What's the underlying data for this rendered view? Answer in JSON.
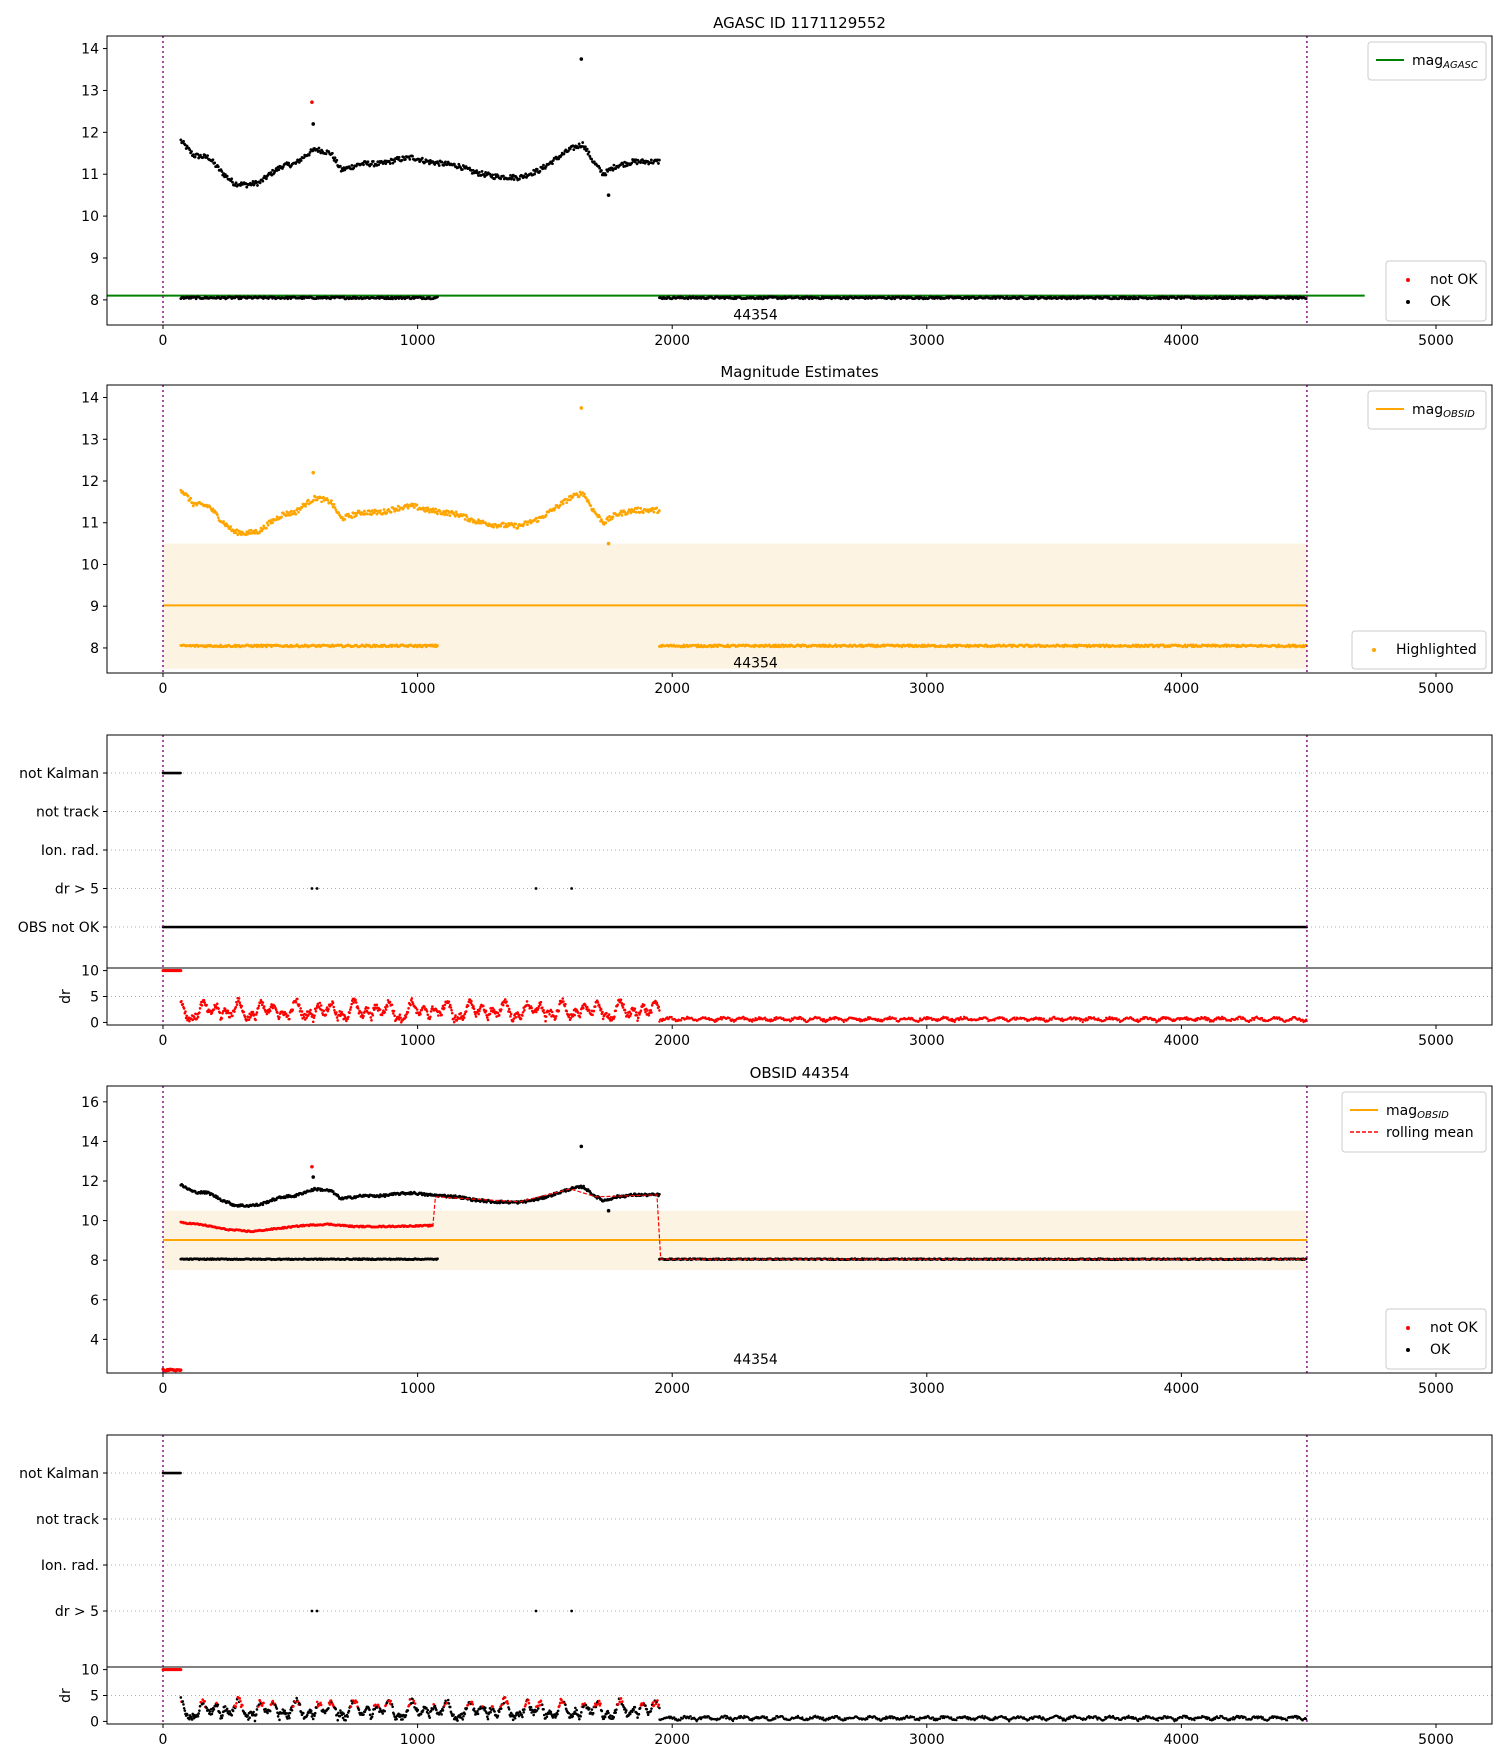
{
  "chart_data": [
    {
      "type": "scatter",
      "title": "AGASC ID 1171129552",
      "xlim": [
        -220,
        5220
      ],
      "ylim": [
        7.4,
        14.3
      ],
      "xticks": [
        0,
        1000,
        2000,
        3000,
        4000,
        5000
      ],
      "yticks": [
        8,
        9,
        10,
        11,
        12,
        13,
        14
      ],
      "vlines": [
        0,
        4493
      ],
      "hlines": [
        {
          "y": 8.1,
          "x": [
            -220,
            4720
          ],
          "color": "#008000"
        }
      ],
      "obsid_label": {
        "text": "44354",
        "x": 2240,
        "y": 7.65
      },
      "segments": {
        "bright_curve": {
          "x_range": [
            70,
            1950
          ],
          "level": 11.2
        },
        "faint_1": {
          "x_range": [
            70,
            1080
          ],
          "level": 8.05
        },
        "faint_2": {
          "x_range": [
            1950,
            4493
          ],
          "level": 8.05
        }
      },
      "outliers": [
        {
          "x": 585,
          "y": 12.72,
          "series": "not OK"
        },
        {
          "x": 590,
          "y": 12.2,
          "series": "OK"
        },
        {
          "x": 1643,
          "y": 13.75,
          "series": "OK"
        },
        {
          "x": 1750,
          "y": 10.5,
          "series": "OK"
        }
      ],
      "series": [
        {
          "name": "not OK",
          "color": "#ff0000"
        },
        {
          "name": "OK",
          "color": "#000000"
        }
      ],
      "legends": [
        {
          "position": "top-right",
          "items": [
            {
              "label": "mag",
              "sub": "AGASC",
              "kind": "line",
              "color": "#008000"
            }
          ]
        },
        {
          "position": "bottom-right",
          "items": [
            {
              "label": "not OK",
              "kind": "dot",
              "color": "#ff0000"
            },
            {
              "label": "OK",
              "kind": "dot",
              "color": "#000000"
            }
          ]
        }
      ]
    },
    {
      "type": "scatter",
      "title": "Magnitude Estimates",
      "xlim": [
        -220,
        5220
      ],
      "ylim": [
        7.4,
        14.3
      ],
      "xticks": [
        0,
        1000,
        2000,
        3000,
        4000,
        5000
      ],
      "yticks": [
        8,
        9,
        10,
        11,
        12,
        13,
        14
      ],
      "vlines": [
        0,
        4493
      ],
      "band": {
        "x": [
          0,
          4493
        ],
        "y": [
          7.5,
          10.5
        ],
        "color": "#fdf3e3"
      },
      "hlines": [
        {
          "y": 9.02,
          "x": [
            0,
            4493
          ],
          "color": "#ffa500"
        }
      ],
      "obsid_label": {
        "text": "44354",
        "x": 2240,
        "y": 7.65
      },
      "segments": {
        "bright_curve": {
          "x_range": [
            70,
            1950
          ],
          "level": 11.2
        },
        "faint_1": {
          "x_range": [
            70,
            1080
          ],
          "level": 8.05
        },
        "faint_2": {
          "x_range": [
            1950,
            4493
          ],
          "level": 8.05
        }
      },
      "outliers": [
        {
          "x": 590,
          "y": 12.2,
          "series": "Highlighted"
        },
        {
          "x": 1643,
          "y": 13.75,
          "series": "Highlighted"
        },
        {
          "x": 1750,
          "y": 10.5,
          "series": "Highlighted"
        }
      ],
      "series": [
        {
          "name": "Highlighted",
          "color": "#ffa500"
        }
      ],
      "legends": [
        {
          "position": "top-right",
          "items": [
            {
              "label": "mag",
              "sub": "OBSID",
              "kind": "line",
              "color": "#ffa500"
            }
          ]
        },
        {
          "position": "bottom-right",
          "items": [
            {
              "label": "Highlighted",
              "kind": "dot",
              "color": "#ffa500"
            }
          ]
        }
      ]
    },
    {
      "type": "scatter",
      "xlim": [
        -220,
        5220
      ],
      "xticks": [
        0,
        1000,
        2000,
        3000,
        4000,
        5000
      ],
      "vlines": [
        0,
        4493
      ],
      "flag_labels": [
        "not Kalman",
        "not track",
        "Ion. rad.",
        "dr > 5",
        "OBS not OK"
      ],
      "flags": [
        {
          "label": "not Kalman",
          "x_range": [
            0,
            70
          ]
        },
        {
          "label": "dr > 5",
          "x": [
            585,
            605,
            1465,
            1605
          ]
        },
        {
          "label": "OBS not OK",
          "x_range": [
            0,
            4493
          ]
        }
      ],
      "dr_panel": {
        "ylabel": "dr",
        "yticks": [
          0,
          5,
          10
        ],
        "ylim": [
          -0.5,
          10.5
        ],
        "saturated": {
          "x_range": [
            0,
            70
          ],
          "value": 10
        },
        "noisy": {
          "x_range": [
            70,
            1950
          ],
          "range": [
            0,
            5
          ]
        },
        "quiet": {
          "x_range": [
            1950,
            4493
          ],
          "range": [
            0,
            1.2
          ]
        },
        "color": "#ff0000"
      }
    },
    {
      "type": "scatter",
      "title": "OBSID 44354",
      "xlim": [
        -220,
        5220
      ],
      "ylim": [
        2.3,
        16.8
      ],
      "xticks": [
        0,
        1000,
        2000,
        3000,
        4000,
        5000
      ],
      "yticks": [
        4,
        6,
        8,
        10,
        12,
        14,
        16
      ],
      "vlines": [
        0,
        4493
      ],
      "band": {
        "x": [
          0,
          4493
        ],
        "y": [
          7.5,
          10.5
        ],
        "color": "#fdf3e3"
      },
      "hlines": [
        {
          "y": 9.02,
          "x": [
            0,
            4493
          ],
          "color": "#ffa500"
        }
      ],
      "obsid_label": {
        "text": "44354",
        "x": 2240,
        "y": 3.0
      },
      "segments": {
        "bright_curve": {
          "x_range": [
            70,
            1950
          ],
          "level": 11.2
        },
        "faint_1": {
          "x_range": [
            70,
            1080
          ],
          "level": 8.05
        },
        "faint_2": {
          "x_range": [
            1950,
            4493
          ],
          "level": 8.05
        },
        "red_low": {
          "x_range": [
            0,
            70
          ],
          "level": 2.45
        }
      },
      "rolling_mean": [
        {
          "x": 70,
          "y": 9.9
        },
        {
          "x": 150,
          "y": 9.8
        },
        {
          "x": 250,
          "y": 9.55
        },
        {
          "x": 350,
          "y": 9.45
        },
        {
          "x": 450,
          "y": 9.6
        },
        {
          "x": 550,
          "y": 9.75
        },
        {
          "x": 650,
          "y": 9.82
        },
        {
          "x": 750,
          "y": 9.7
        },
        {
          "x": 850,
          "y": 9.7
        },
        {
          "x": 950,
          "y": 9.72
        },
        {
          "x": 1060,
          "y": 9.75
        },
        {
          "x": 1070,
          "y": 11.2
        },
        {
          "x": 1200,
          "y": 11.1
        },
        {
          "x": 1400,
          "y": 10.95
        },
        {
          "x": 1600,
          "y": 11.6
        },
        {
          "x": 1700,
          "y": 11.2
        },
        {
          "x": 1940,
          "y": 11.3
        },
        {
          "x": 1955,
          "y": 8.05
        },
        {
          "x": 4493,
          "y": 8.05
        }
      ],
      "outliers": [
        {
          "x": 585,
          "y": 12.72,
          "series": "not OK"
        },
        {
          "x": 590,
          "y": 12.2,
          "series": "OK"
        },
        {
          "x": 1643,
          "y": 13.75,
          "series": "OK"
        },
        {
          "x": 1750,
          "y": 10.5,
          "series": "OK"
        }
      ],
      "series": [
        {
          "name": "not OK",
          "color": "#ff0000"
        },
        {
          "name": "OK",
          "color": "#000000"
        }
      ],
      "legends": [
        {
          "position": "top-right",
          "items": [
            {
              "label": "mag",
              "sub": "OBSID",
              "kind": "line",
              "color": "#ffa500"
            },
            {
              "label": "rolling mean",
              "kind": "dash",
              "color": "#ff0000"
            }
          ]
        },
        {
          "position": "bottom-right",
          "items": [
            {
              "label": "not OK",
              "kind": "dot",
              "color": "#ff0000"
            },
            {
              "label": "OK",
              "kind": "dot",
              "color": "#000000"
            }
          ]
        }
      ]
    },
    {
      "type": "scatter",
      "xlim": [
        -220,
        5220
      ],
      "xticks": [
        0,
        1000,
        2000,
        3000,
        4000,
        5000
      ],
      "vlines": [
        0,
        4493
      ],
      "flag_labels": [
        "not Kalman",
        "not track",
        "Ion. rad.",
        "dr > 5"
      ],
      "flags": [
        {
          "label": "not Kalman",
          "x_range": [
            0,
            70
          ]
        },
        {
          "label": "dr > 5",
          "x": [
            585,
            605,
            1465,
            1605
          ]
        }
      ],
      "dr_panel": {
        "ylabel": "dr",
        "yticks": [
          0,
          5,
          10
        ],
        "ylim": [
          -0.5,
          10.5
        ],
        "saturated": {
          "x_range": [
            0,
            70
          ],
          "value": 10
        },
        "noisy": {
          "x_range": [
            70,
            1950
          ],
          "range": [
            0,
            5
          ]
        },
        "quiet": {
          "x_range": [
            1950,
            4493
          ],
          "range": [
            0,
            1.2
          ]
        },
        "color": "#000000",
        "highlight_color": "#ff0000"
      }
    }
  ]
}
